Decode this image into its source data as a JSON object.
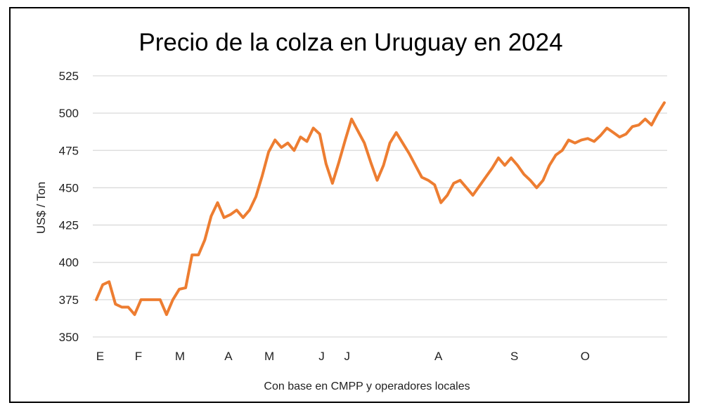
{
  "chart_data": {
    "type": "line",
    "title": "Precio de la colza en Uruguay en 2024",
    "ylabel": "US$ / Ton",
    "xlabel": "Con base en CMPP y operadores locales",
    "ylim": [
      350,
      525
    ],
    "yticks": [
      350,
      375,
      400,
      425,
      450,
      475,
      500,
      525
    ],
    "grid": true,
    "line_color": "#ED7D31",
    "x_tick_labels": [
      {
        "label": "E",
        "index": 0.6
      },
      {
        "label": "F",
        "index": 6.6
      },
      {
        "label": "M",
        "index": 13.1
      },
      {
        "label": "A",
        "index": 20.7
      },
      {
        "label": "M",
        "index": 27.1
      },
      {
        "label": "J",
        "index": 35.3
      },
      {
        "label": "J",
        "index": 39.3
      },
      {
        "label": "A",
        "index": 53.6
      },
      {
        "label": "S",
        "index": 65.5
      },
      {
        "label": "O",
        "index": 76.6
      }
    ],
    "values": [
      375,
      385,
      387,
      372,
      370,
      370,
      365,
      375,
      375,
      375,
      375,
      365,
      375,
      382,
      383,
      405,
      405,
      415,
      431,
      440,
      430,
      432,
      435,
      430,
      435,
      444,
      458,
      474,
      482,
      477,
      480,
      475,
      484,
      481,
      490,
      486,
      466,
      453,
      467,
      482,
      496,
      488,
      480,
      467,
      455,
      465,
      480,
      487,
      480,
      473,
      465,
      457,
      455,
      452,
      440,
      445,
      453,
      455,
      450,
      445,
      451,
      457,
      463,
      470,
      465,
      470,
      465,
      459,
      455,
      450,
      455,
      465,
      472,
      475,
      482,
      480,
      482,
      483,
      481,
      485,
      490,
      487,
      484,
      486,
      491,
      492,
      496,
      492,
      500,
      507
    ]
  }
}
